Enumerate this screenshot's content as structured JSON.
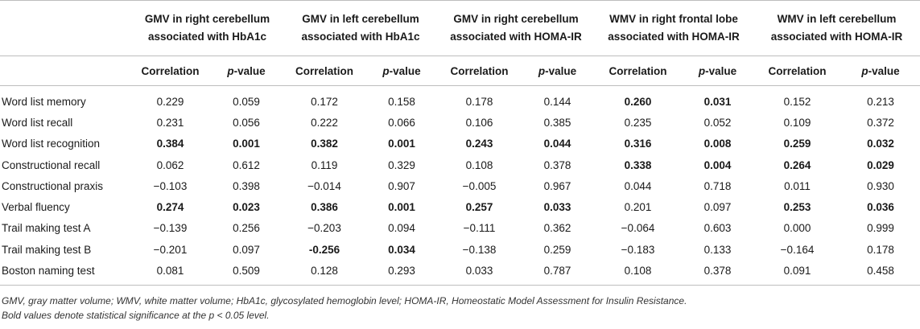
{
  "headers": {
    "groups": [
      {
        "line1": "GMV in right cerebellum",
        "line2": "associated with HbA1c"
      },
      {
        "line1": "GMV in left cerebellum",
        "line2": "associated with HbA1c"
      },
      {
        "line1": "GMV in right cerebellum",
        "line2": "associated with HOMA-IR"
      },
      {
        "line1": "WMV in right frontal lobe",
        "line2": "associated with HOMA-IR"
      },
      {
        "line1": "WMV in left cerebellum",
        "line2": "associated with HOMA-IR"
      }
    ],
    "correlation": "Correlation",
    "p_italic": "p",
    "p_suffix": "-value"
  },
  "rows": [
    {
      "label": "Word list memory",
      "cells": [
        {
          "v": "0.229",
          "b": false
        },
        {
          "v": "0.059",
          "b": false
        },
        {
          "v": "0.172",
          "b": false
        },
        {
          "v": "0.158",
          "b": false
        },
        {
          "v": "0.178",
          "b": false
        },
        {
          "v": "0.144",
          "b": false
        },
        {
          "v": "0.260",
          "b": true
        },
        {
          "v": "0.031",
          "b": true
        },
        {
          "v": "0.152",
          "b": false
        },
        {
          "v": "0.213",
          "b": false
        }
      ]
    },
    {
      "label": "Word list recall",
      "cells": [
        {
          "v": "0.231",
          "b": false
        },
        {
          "v": "0.056",
          "b": false
        },
        {
          "v": "0.222",
          "b": false
        },
        {
          "v": "0.066",
          "b": false
        },
        {
          "v": "0.106",
          "b": false
        },
        {
          "v": "0.385",
          "b": false
        },
        {
          "v": "0.235",
          "b": false
        },
        {
          "v": "0.052",
          "b": false
        },
        {
          "v": "0.109",
          "b": false
        },
        {
          "v": "0.372",
          "b": false
        }
      ]
    },
    {
      "label": "Word list recognition",
      "cells": [
        {
          "v": "0.384",
          "b": true
        },
        {
          "v": "0.001",
          "b": true
        },
        {
          "v": "0.382",
          "b": true
        },
        {
          "v": "0.001",
          "b": true
        },
        {
          "v": "0.243",
          "b": true
        },
        {
          "v": "0.044",
          "b": true
        },
        {
          "v": "0.316",
          "b": true
        },
        {
          "v": "0.008",
          "b": true
        },
        {
          "v": "0.259",
          "b": true
        },
        {
          "v": "0.032",
          "b": true
        }
      ]
    },
    {
      "label": "Constructional recall",
      "cells": [
        {
          "v": "0.062",
          "b": false
        },
        {
          "v": "0.612",
          "b": false
        },
        {
          "v": "0.119",
          "b": false
        },
        {
          "v": "0.329",
          "b": false
        },
        {
          "v": "0.108",
          "b": false
        },
        {
          "v": "0.378",
          "b": false
        },
        {
          "v": "0.338",
          "b": true
        },
        {
          "v": "0.004",
          "b": true
        },
        {
          "v": "0.264",
          "b": true
        },
        {
          "v": "0.029",
          "b": true
        }
      ]
    },
    {
      "label": "Constructional praxis",
      "cells": [
        {
          "v": "−0.103",
          "b": false
        },
        {
          "v": "0.398",
          "b": false
        },
        {
          "v": "−0.014",
          "b": false
        },
        {
          "v": "0.907",
          "b": false
        },
        {
          "v": "−0.005",
          "b": false
        },
        {
          "v": "0.967",
          "b": false
        },
        {
          "v": "0.044",
          "b": false
        },
        {
          "v": "0.718",
          "b": false
        },
        {
          "v": "0.011",
          "b": false
        },
        {
          "v": "0.930",
          "b": false
        }
      ]
    },
    {
      "label": "Verbal fluency",
      "cells": [
        {
          "v": "0.274",
          "b": true
        },
        {
          "v": "0.023",
          "b": true
        },
        {
          "v": "0.386",
          "b": true
        },
        {
          "v": "0.001",
          "b": true
        },
        {
          "v": "0.257",
          "b": true
        },
        {
          "v": "0.033",
          "b": true
        },
        {
          "v": "0.201",
          "b": false
        },
        {
          "v": "0.097",
          "b": false
        },
        {
          "v": "0.253",
          "b": true
        },
        {
          "v": "0.036",
          "b": true
        }
      ]
    },
    {
      "label": "Trail making test A",
      "cells": [
        {
          "v": "−0.139",
          "b": false
        },
        {
          "v": "0.256",
          "b": false
        },
        {
          "v": "−0.203",
          "b": false
        },
        {
          "v": "0.094",
          "b": false
        },
        {
          "v": "−0.111",
          "b": false
        },
        {
          "v": "0.362",
          "b": false
        },
        {
          "v": "−0.064",
          "b": false
        },
        {
          "v": "0.603",
          "b": false
        },
        {
          "v": "0.000",
          "b": false
        },
        {
          "v": "0.999",
          "b": false
        }
      ]
    },
    {
      "label": "Trail making test B",
      "cells": [
        {
          "v": "−0.201",
          "b": false
        },
        {
          "v": "0.097",
          "b": false
        },
        {
          "v": "-0.256",
          "b": true
        },
        {
          "v": "0.034",
          "b": true
        },
        {
          "v": "−0.138",
          "b": false
        },
        {
          "v": "0.259",
          "b": false
        },
        {
          "v": "−0.183",
          "b": false
        },
        {
          "v": "0.133",
          "b": false
        },
        {
          "v": "−0.164",
          "b": false
        },
        {
          "v": "0.178",
          "b": false
        }
      ]
    },
    {
      "label": "Boston naming test",
      "cells": [
        {
          "v": "0.081",
          "b": false
        },
        {
          "v": "0.509",
          "b": false
        },
        {
          "v": "0.128",
          "b": false
        },
        {
          "v": "0.293",
          "b": false
        },
        {
          "v": "0.033",
          "b": false
        },
        {
          "v": "0.787",
          "b": false
        },
        {
          "v": "0.108",
          "b": false
        },
        {
          "v": "0.378",
          "b": false
        },
        {
          "v": "0.091",
          "b": false
        },
        {
          "v": "0.458",
          "b": false
        }
      ]
    }
  ],
  "footnotes": {
    "abbreviations": "GMV, gray matter volume; WMV, white matter volume; HbA1c, glycosylated hemoglobin level; HOMA-IR, Homeostatic Model Assessment for Insulin Resistance.",
    "significance": "Bold values denote statistical significance at the p < 0.05 level."
  }
}
